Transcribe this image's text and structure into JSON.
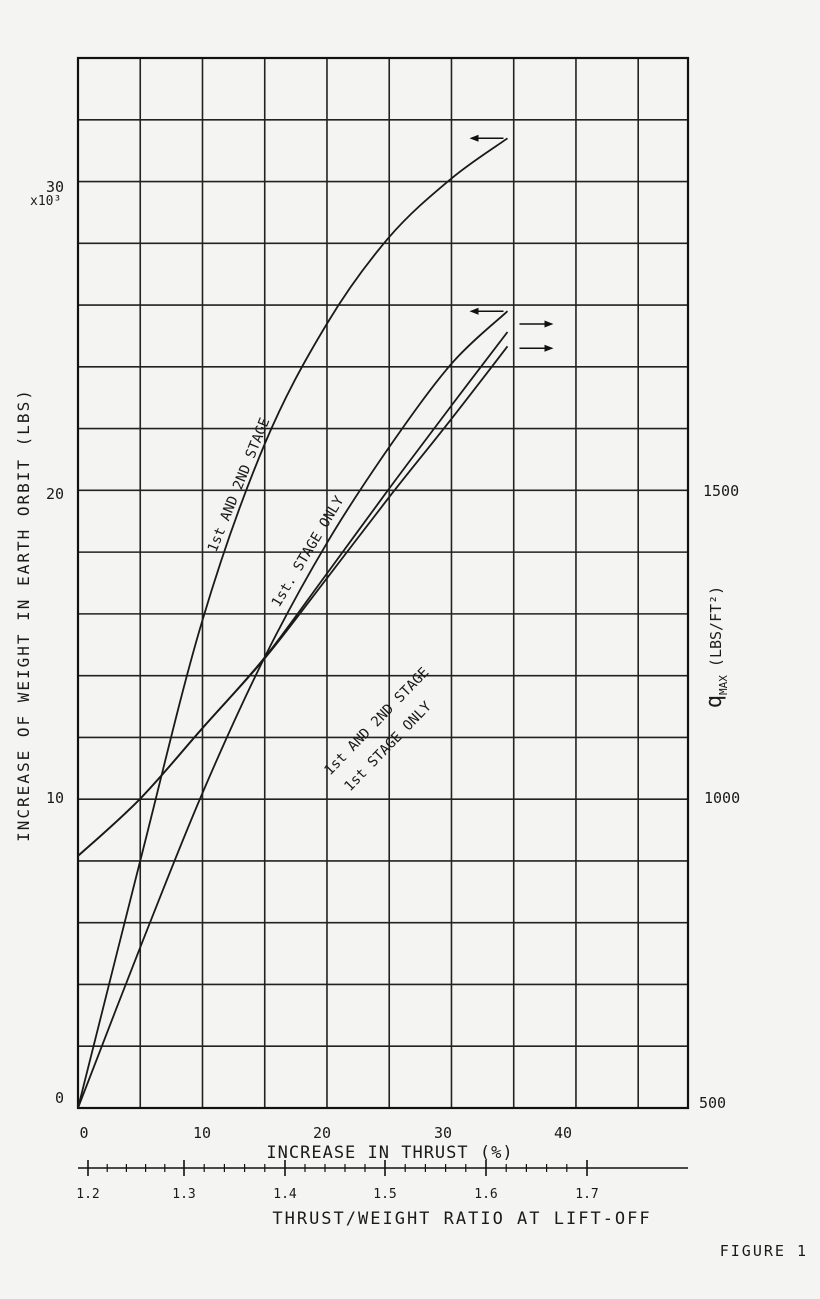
{
  "chart_data": {
    "type": "line",
    "xlabel": "INCREASE IN THRUST (%)",
    "x_ticks": [
      "0",
      "10",
      "20",
      "30",
      "40"
    ],
    "xlim": [
      0,
      49
    ],
    "ylabel_left": "INCREASE OF WEIGHT IN EARTH ORBIT (LBS)",
    "y_ticks_left": [
      "0",
      "10",
      "20",
      "30"
    ],
    "y_multiplier": "x10³",
    "ylim_left": [
      0,
      34
    ],
    "ylabel_right": "q_MAX (LBS/FT²)",
    "right_label_main": "q",
    "right_label_sub": "MAX",
    "right_label_units": "(LBS/FT²)",
    "y_ticks_right": [
      "500",
      "1000",
      "1500"
    ],
    "ylim_right": [
      500,
      1600
    ],
    "x2label": "THRUST/WEIGHT RATIO AT LIFT-OFF",
    "x2_ticks": [
      "1.2",
      "1.3",
      "1.4",
      "1.5",
      "1.6",
      "1.7"
    ],
    "grid": true,
    "series": [
      {
        "name": "1st AND 2ND STAGE",
        "axis": "left",
        "points": [
          [
            0,
            0
          ],
          [
            5,
            8
          ],
          [
            10,
            15.8
          ],
          [
            15,
            21.5
          ],
          [
            20,
            25.4
          ],
          [
            25,
            28.2
          ],
          [
            30,
            30.1
          ],
          [
            34.5,
            31.4
          ]
        ]
      },
      {
        "name": "1st. STAGE ONLY",
        "axis": "left",
        "points": [
          [
            0,
            0
          ],
          [
            5,
            5.2
          ],
          [
            10,
            10.2
          ],
          [
            15,
            14.6
          ],
          [
            20,
            18.3
          ],
          [
            25,
            21.4
          ],
          [
            30,
            24.1
          ],
          [
            34.5,
            25.8
          ]
        ]
      },
      {
        "name": "1st AND 2ND STAGE",
        "axis": "right",
        "points": [
          [
            0,
            764
          ],
          [
            5,
            824
          ],
          [
            10,
            898
          ],
          [
            15,
            972
          ],
          [
            20,
            1060
          ],
          [
            25,
            1149
          ],
          [
            30,
            1236
          ],
          [
            34.5,
            1313
          ]
        ]
      },
      {
        "name": "1st STAGE ONLY",
        "axis": "right",
        "points": [
          [
            0,
            764
          ],
          [
            5,
            824
          ],
          [
            10,
            898
          ],
          [
            15,
            971
          ],
          [
            20,
            1055
          ],
          [
            25,
            1140
          ],
          [
            30,
            1222
          ],
          [
            34.5,
            1298
          ]
        ]
      }
    ]
  },
  "figure_label": "FIGURE 1"
}
